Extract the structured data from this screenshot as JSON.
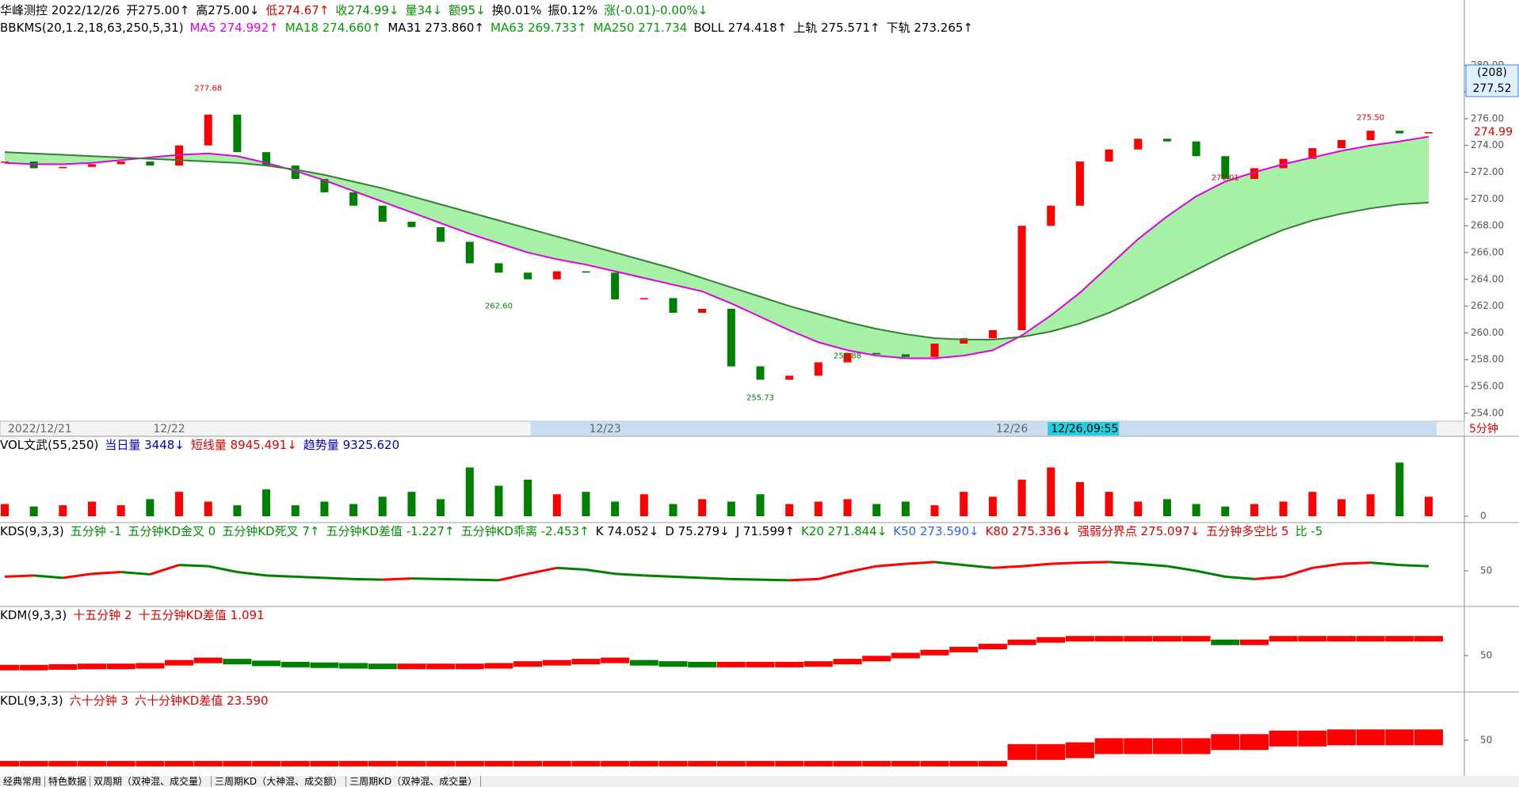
{
  "header": {
    "line1": [
      {
        "text": "华峰测控 2022/12/26",
        "color": "#000000"
      },
      {
        "text": "开275.00↑",
        "color": "#000000"
      },
      {
        "text": "高275.00↓",
        "color": "#000000"
      },
      {
        "text": "低274.67↑",
        "color": "#e00000"
      },
      {
        "text": "收274.99↓",
        "color": "#009000"
      },
      {
        "text": "量34↓",
        "color": "#009000"
      },
      {
        "text": "额95↓",
        "color": "#009000"
      },
      {
        "text": "换0.01%",
        "color": "#000000"
      },
      {
        "text": "振0.12%",
        "color": "#000000"
      },
      {
        "text": "涨(-0.01)-0.00%↓",
        "color": "#009000"
      }
    ],
    "line2": [
      {
        "text": "BBKMS(20,1.2,18,63,250,5,31)",
        "color": "#000000"
      },
      {
        "text": "MA5 274.992↑",
        "color": "#e000e0"
      },
      {
        "text": "MA18 274.660↑",
        "color": "#00a000"
      },
      {
        "text": "MA31 273.860↑",
        "color": "#000000"
      },
      {
        "text": "MA63 269.733↑",
        "color": "#00a000"
      },
      {
        "text": "MA250 271.734",
        "color": "#00a000"
      },
      {
        "text": "BOLL 274.418↑",
        "color": "#000000"
      },
      {
        "text": "上轨 275.571↑",
        "color": "#000000"
      },
      {
        "text": "下轨 273.265↑",
        "color": "#000000"
      }
    ]
  },
  "main": {
    "type": "candlestick",
    "ylim": [
      253.4,
      282.5
    ],
    "yticks": [
      {
        "value": 280,
        "label": "280.00"
      },
      {
        "value": 278,
        "label": "278.00"
      },
      {
        "value": 276,
        "label": "276.00"
      },
      {
        "value": 274,
        "label": "274.00"
      },
      {
        "value": 272,
        "label": "272.00"
      },
      {
        "value": 270,
        "label": "270.00"
      },
      {
        "value": 268,
        "label": "268.00"
      },
      {
        "value": 266,
        "label": "266.00"
      },
      {
        "value": 264,
        "label": "264.00"
      },
      {
        "value": 262,
        "label": "262.00"
      },
      {
        "value": 260,
        "label": "260.00"
      },
      {
        "value": 258,
        "label": "258.00"
      },
      {
        "value": 256,
        "label": "256.00"
      },
      {
        "value": 254,
        "label": "254.00"
      }
    ],
    "close": [
      272.8,
      272.3,
      272.4,
      272.6,
      272.8,
      272.5,
      274,
      276.3,
      273.5,
      272.5,
      271.5,
      270.5,
      269.5,
      268.3,
      267.9,
      266.8,
      265.2,
      264.5,
      264,
      264.6,
      264.5,
      262.5,
      262.6,
      261.5,
      261.8,
      257.5,
      256.5,
      256.8,
      257.8,
      258.5,
      258.4,
      258.2,
      259.2,
      259.6,
      260.2,
      268,
      269.5,
      272.8,
      273.7,
      274.5,
      274.3,
      273.2,
      271.5,
      272.3,
      273,
      273.8,
      274.4,
      275.1,
      274.9,
      274.99
    ],
    "series": [
      {
        "color": "#e000e0",
        "values": [
          272.7,
          272.6,
          272.6,
          272.7,
          272.9,
          273.1,
          273.3,
          273.4,
          273.2,
          272.7,
          272.1,
          271.4,
          270.6,
          269.8,
          269,
          268.2,
          267.4,
          266.7,
          266,
          265.5,
          265.1,
          264.6,
          264.1,
          263.6,
          263.1,
          262.2,
          261.2,
          260.2,
          259.3,
          258.7,
          258.3,
          258.1,
          258.1,
          258.3,
          258.7,
          259.8,
          261.3,
          263,
          265,
          267,
          268.7,
          270.2,
          271.3,
          272,
          272.6,
          273.1,
          273.6,
          274,
          274.3,
          274.66
        ]
      },
      {
        "color": "#3a7a3a",
        "values": [
          273.5,
          273.4,
          273.3,
          273.2,
          273.1,
          273,
          272.9,
          272.8,
          272.7,
          272.5,
          272.2,
          271.8,
          271.3,
          270.8,
          270.2,
          269.6,
          269,
          268.4,
          267.8,
          267.2,
          266.6,
          266,
          265.4,
          264.8,
          264.1,
          263.4,
          262.7,
          262,
          261.4,
          260.8,
          260.3,
          259.9,
          259.6,
          259.5,
          259.5,
          259.7,
          260.1,
          260.7,
          261.5,
          262.5,
          263.6,
          264.7,
          265.8,
          266.8,
          267.7,
          268.4,
          268.9,
          269.3,
          269.6,
          269.73
        ]
      }
    ],
    "band_color": "#90ee90",
    "up_color": "#ff0000",
    "down_color": "#008000",
    "annotations": [
      {
        "x": 7,
        "value": 277.68,
        "label": "277.68"
      },
      {
        "x": 17,
        "value": 262.6,
        "label": "262.60"
      },
      {
        "x": 26,
        "value": 255.73,
        "label": "255.73"
      },
      {
        "x": 29,
        "value": 258.88,
        "label": "258.88"
      },
      {
        "x": 42,
        "value": 271.01,
        "label": "271.01"
      },
      {
        "x": 47,
        "value": 275.5,
        "label": "275.50"
      }
    ],
    "last_price": {
      "value": 274.99,
      "label": "274.99"
    },
    "cursor": [
      "(208)",
      "277.52"
    ],
    "dates": [
      {
        "x": 0,
        "label": "2022/12/21"
      },
      {
        "x": 5,
        "label": "12/22"
      },
      {
        "x": 20,
        "label": "12/23"
      },
      {
        "x": 34,
        "label": "12/26"
      }
    ],
    "cursor_date": {
      "x": 36,
      "label": "12/26,09:55"
    },
    "period": "5分钟"
  },
  "vol": {
    "items": [
      {
        "text": "VOL文武(55,250)",
        "color": "#000000"
      },
      {
        "text": "当日量 3448↓",
        "color": "#0000c0"
      },
      {
        "text": "短线量 8945.491↓",
        "color": "#e00000"
      },
      {
        "text": "趋势量 9325.620",
        "color": "#0000c0"
      }
    ],
    "ylim": [
      0,
      50
    ],
    "yticks": [
      0
    ],
    "values": [
      10,
      8,
      9,
      12,
      9,
      14,
      20,
      12,
      9,
      22,
      9,
      12,
      10,
      16,
      20,
      14,
      40,
      25,
      30,
      18,
      20,
      12,
      18,
      10,
      14,
      12,
      18,
      10,
      12,
      14,
      10,
      12,
      9,
      20,
      16,
      30,
      40,
      28,
      20,
      12,
      14,
      10,
      8,
      10,
      12,
      20,
      14,
      18,
      44,
      16
    ]
  },
  "kds": {
    "items": [
      {
        "text": "KDS(9,3,3)",
        "color": "#000000"
      },
      {
        "text": "五分钟 -1",
        "color": "#009000"
      },
      {
        "text": "五分钟KD金叉 0",
        "color": "#009000"
      },
      {
        "text": "五分钟KD死叉 7↑",
        "color": "#009000"
      },
      {
        "text": "五分钟KD差值 -1.227↑",
        "color": "#009000"
      },
      {
        "text": "五分钟KD乖离 -2.453↑",
        "color": "#009000"
      },
      {
        "text": "K 74.052↓",
        "color": "#000000"
      },
      {
        "text": "D 75.279↓",
        "color": "#000000"
      },
      {
        "text": "J 71.599↑",
        "color": "#000000"
      },
      {
        "text": "K20 271.844↓",
        "color": "#009000"
      },
      {
        "text": "K50 273.590↓",
        "color": "#3060ff"
      },
      {
        "text": "K80 275.336↓",
        "color": "#e00000"
      },
      {
        "text": "强弱分界点 275.097↓",
        "color": "#e00000"
      },
      {
        "text": "五分钟多空比 5",
        "color": "#e00000"
      },
      {
        "text": "比 -5",
        "color": "#009000"
      }
    ],
    "ylim": [
      0,
      100
    ],
    "yticks": [
      50
    ],
    "values": [
      40,
      42,
      38,
      45,
      48,
      44,
      60,
      58,
      48,
      42,
      40,
      38,
      36,
      35,
      37,
      36,
      35,
      34,
      45,
      55,
      52,
      45,
      42,
      40,
      38,
      36,
      35,
      34,
      36,
      48,
      58,
      62,
      65,
      60,
      55,
      58,
      62,
      64,
      65,
      62,
      58,
      50,
      40,
      36,
      40,
      55,
      62,
      64,
      60,
      58
    ]
  },
  "kdm": {
    "items": [
      {
        "text": "KDM(9,3,3)",
        "color": "#000000"
      },
      {
        "text": "十五分钟 2",
        "color": "#e00000"
      },
      {
        "text": "十五分钟KD差值 1.091",
        "color": "#e00000"
      }
    ],
    "ylim": [
      0,
      100
    ],
    "yticks": [
      50
    ],
    "values": [
      30,
      30,
      31,
      32,
      32,
      33,
      38,
      42,
      40,
      37,
      35,
      34,
      33,
      32,
      32,
      32,
      32,
      33,
      36,
      38,
      40,
      42,
      38,
      36,
      35,
      35,
      35,
      35,
      36,
      40,
      45,
      50,
      55,
      60,
      65,
      72,
      76,
      78,
      78,
      78,
      78,
      78,
      72,
      72,
      78,
      78,
      78,
      78,
      78,
      78
    ]
  },
  "kdl": {
    "items": [
      {
        "text": "KDL(9,3,3)",
        "color": "#000000"
      },
      {
        "text": "六十分钟 3",
        "color": "#e00000"
      },
      {
        "text": "六十分钟KD差值 23.590",
        "color": "#e00000"
      }
    ],
    "ylim": [
      0,
      100
    ],
    "yticks": [
      50
    ],
    "values": [
      10,
      10,
      10,
      10,
      10,
      10,
      10,
      10,
      10,
      10,
      10,
      10,
      10,
      10,
      10,
      10,
      10,
      10,
      10,
      10,
      10,
      10,
      10,
      10,
      10,
      10,
      10,
      10,
      10,
      10,
      10,
      10,
      10,
      10,
      10,
      30,
      30,
      33,
      40,
      40,
      40,
      40,
      47,
      47,
      53,
      53,
      55,
      55,
      55,
      55
    ]
  },
  "tabs": [
    "经典常用",
    "特色数据",
    "双周期（双神混、成交量）",
    "三周期KD（大神混、成交额）",
    "三周期KD（双神混、成交量）"
  ]
}
